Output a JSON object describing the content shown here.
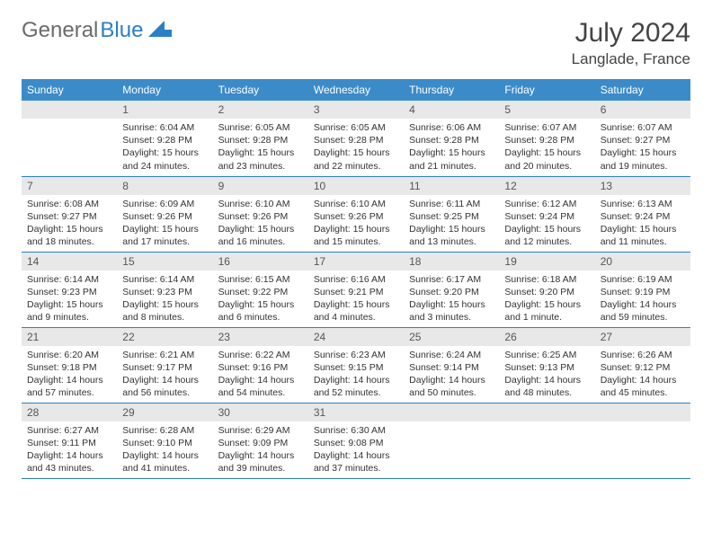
{
  "logo": {
    "text1": "General",
    "text2": "Blue"
  },
  "title": "July 2024",
  "location": "Langlade, France",
  "colors": {
    "header_bg": "#3b8bc9",
    "header_text": "#ffffff",
    "daynum_bg": "#e8e8e8",
    "daynum_text": "#555555",
    "border": "#2b7fc4",
    "logo_gray": "#6b6b6b",
    "logo_blue": "#2b7fc4"
  },
  "weekdays": [
    "Sunday",
    "Monday",
    "Tuesday",
    "Wednesday",
    "Thursday",
    "Friday",
    "Saturday"
  ],
  "weeks": [
    [
      null,
      {
        "n": "1",
        "sr": "Sunrise: 6:04 AM",
        "ss": "Sunset: 9:28 PM",
        "dl": "Daylight: 15 hours and 24 minutes."
      },
      {
        "n": "2",
        "sr": "Sunrise: 6:05 AM",
        "ss": "Sunset: 9:28 PM",
        "dl": "Daylight: 15 hours and 23 minutes."
      },
      {
        "n": "3",
        "sr": "Sunrise: 6:05 AM",
        "ss": "Sunset: 9:28 PM",
        "dl": "Daylight: 15 hours and 22 minutes."
      },
      {
        "n": "4",
        "sr": "Sunrise: 6:06 AM",
        "ss": "Sunset: 9:28 PM",
        "dl": "Daylight: 15 hours and 21 minutes."
      },
      {
        "n": "5",
        "sr": "Sunrise: 6:07 AM",
        "ss": "Sunset: 9:28 PM",
        "dl": "Daylight: 15 hours and 20 minutes."
      },
      {
        "n": "6",
        "sr": "Sunrise: 6:07 AM",
        "ss": "Sunset: 9:27 PM",
        "dl": "Daylight: 15 hours and 19 minutes."
      }
    ],
    [
      {
        "n": "7",
        "sr": "Sunrise: 6:08 AM",
        "ss": "Sunset: 9:27 PM",
        "dl": "Daylight: 15 hours and 18 minutes."
      },
      {
        "n": "8",
        "sr": "Sunrise: 6:09 AM",
        "ss": "Sunset: 9:26 PM",
        "dl": "Daylight: 15 hours and 17 minutes."
      },
      {
        "n": "9",
        "sr": "Sunrise: 6:10 AM",
        "ss": "Sunset: 9:26 PM",
        "dl": "Daylight: 15 hours and 16 minutes."
      },
      {
        "n": "10",
        "sr": "Sunrise: 6:10 AM",
        "ss": "Sunset: 9:26 PM",
        "dl": "Daylight: 15 hours and 15 minutes."
      },
      {
        "n": "11",
        "sr": "Sunrise: 6:11 AM",
        "ss": "Sunset: 9:25 PM",
        "dl": "Daylight: 15 hours and 13 minutes."
      },
      {
        "n": "12",
        "sr": "Sunrise: 6:12 AM",
        "ss": "Sunset: 9:24 PM",
        "dl": "Daylight: 15 hours and 12 minutes."
      },
      {
        "n": "13",
        "sr": "Sunrise: 6:13 AM",
        "ss": "Sunset: 9:24 PM",
        "dl": "Daylight: 15 hours and 11 minutes."
      }
    ],
    [
      {
        "n": "14",
        "sr": "Sunrise: 6:14 AM",
        "ss": "Sunset: 9:23 PM",
        "dl": "Daylight: 15 hours and 9 minutes."
      },
      {
        "n": "15",
        "sr": "Sunrise: 6:14 AM",
        "ss": "Sunset: 9:23 PM",
        "dl": "Daylight: 15 hours and 8 minutes."
      },
      {
        "n": "16",
        "sr": "Sunrise: 6:15 AM",
        "ss": "Sunset: 9:22 PM",
        "dl": "Daylight: 15 hours and 6 minutes."
      },
      {
        "n": "17",
        "sr": "Sunrise: 6:16 AM",
        "ss": "Sunset: 9:21 PM",
        "dl": "Daylight: 15 hours and 4 minutes."
      },
      {
        "n": "18",
        "sr": "Sunrise: 6:17 AM",
        "ss": "Sunset: 9:20 PM",
        "dl": "Daylight: 15 hours and 3 minutes."
      },
      {
        "n": "19",
        "sr": "Sunrise: 6:18 AM",
        "ss": "Sunset: 9:20 PM",
        "dl": "Daylight: 15 hours and 1 minute."
      },
      {
        "n": "20",
        "sr": "Sunrise: 6:19 AM",
        "ss": "Sunset: 9:19 PM",
        "dl": "Daylight: 14 hours and 59 minutes."
      }
    ],
    [
      {
        "n": "21",
        "sr": "Sunrise: 6:20 AM",
        "ss": "Sunset: 9:18 PM",
        "dl": "Daylight: 14 hours and 57 minutes."
      },
      {
        "n": "22",
        "sr": "Sunrise: 6:21 AM",
        "ss": "Sunset: 9:17 PM",
        "dl": "Daylight: 14 hours and 56 minutes."
      },
      {
        "n": "23",
        "sr": "Sunrise: 6:22 AM",
        "ss": "Sunset: 9:16 PM",
        "dl": "Daylight: 14 hours and 54 minutes."
      },
      {
        "n": "24",
        "sr": "Sunrise: 6:23 AM",
        "ss": "Sunset: 9:15 PM",
        "dl": "Daylight: 14 hours and 52 minutes."
      },
      {
        "n": "25",
        "sr": "Sunrise: 6:24 AM",
        "ss": "Sunset: 9:14 PM",
        "dl": "Daylight: 14 hours and 50 minutes."
      },
      {
        "n": "26",
        "sr": "Sunrise: 6:25 AM",
        "ss": "Sunset: 9:13 PM",
        "dl": "Daylight: 14 hours and 48 minutes."
      },
      {
        "n": "27",
        "sr": "Sunrise: 6:26 AM",
        "ss": "Sunset: 9:12 PM",
        "dl": "Daylight: 14 hours and 45 minutes."
      }
    ],
    [
      {
        "n": "28",
        "sr": "Sunrise: 6:27 AM",
        "ss": "Sunset: 9:11 PM",
        "dl": "Daylight: 14 hours and 43 minutes."
      },
      {
        "n": "29",
        "sr": "Sunrise: 6:28 AM",
        "ss": "Sunset: 9:10 PM",
        "dl": "Daylight: 14 hours and 41 minutes."
      },
      {
        "n": "30",
        "sr": "Sunrise: 6:29 AM",
        "ss": "Sunset: 9:09 PM",
        "dl": "Daylight: 14 hours and 39 minutes."
      },
      {
        "n": "31",
        "sr": "Sunrise: 6:30 AM",
        "ss": "Sunset: 9:08 PM",
        "dl": "Daylight: 14 hours and 37 minutes."
      },
      null,
      null,
      null
    ]
  ]
}
